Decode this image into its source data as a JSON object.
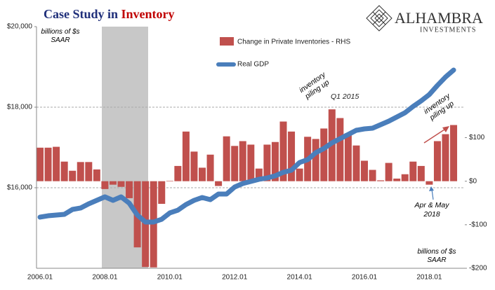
{
  "chart_data": {
    "type": "bar_line",
    "title": "Case Study in",
    "title_highlight": "Inventory",
    "logo": {
      "name": "ALHAMBRA",
      "sub": "INVESTMENTS"
    },
    "annotations": {
      "left_unit": "billions of $s SAAR",
      "right_unit": "billions of $s SAAR",
      "piling_1": "inventory piling up",
      "q1": "Q1 2015",
      "piling_2": "inventory piling up",
      "aprmay": "Apr & May 2018"
    },
    "categories": [
      "2006.01",
      null,
      null,
      null,
      null,
      null,
      null,
      null,
      "2008.01",
      null,
      null,
      null,
      null,
      null,
      null,
      null,
      "2010.01",
      null,
      null,
      null,
      null,
      null,
      null,
      null,
      "2012.01",
      null,
      null,
      null,
      null,
      null,
      null,
      null,
      "2014.01",
      null,
      null,
      null,
      null,
      null,
      null,
      null,
      "2016.01",
      null,
      null,
      null,
      null,
      null,
      null,
      null,
      "2018.01",
      null,
      null,
      null
    ],
    "series": [
      {
        "name": "Change in Private Inventories - RHS",
        "color": "#c0504d",
        "axis": "y2",
        "values": [
          77,
          77,
          79,
          45,
          24,
          44,
          44,
          27,
          -18,
          -8,
          -13,
          -39,
          -152,
          -197,
          -198,
          -52,
          1,
          35,
          114,
          68,
          31,
          61,
          -11,
          103,
          81,
          92,
          84,
          29,
          84,
          90,
          137,
          114,
          29,
          102,
          97,
          121,
          165,
          145,
          110,
          82,
          47,
          26,
          2,
          42,
          6,
          16,
          45,
          35,
          -8,
          92,
          108,
          129
        ]
      },
      {
        "name": "Real GDP",
        "color": "#4a7ebb",
        "values": [
          15270,
          15304,
          15322,
          15339,
          15461,
          15496,
          15600,
          15687,
          15774,
          15687,
          15774,
          15617,
          15322,
          15148,
          15148,
          15217,
          15374,
          15443,
          15583,
          15687,
          15757,
          15704,
          15843,
          15843,
          16017,
          16104,
          16157,
          16209,
          16243,
          16296,
          16383,
          16435,
          16626,
          16696,
          16870,
          16974,
          17113,
          17217,
          17322,
          17426,
          17461,
          17478,
          17565,
          17652,
          17757,
          17861,
          18017,
          18157,
          18313,
          18539,
          18748,
          18922
        ]
      }
    ],
    "ylim": [
      14000,
      20000
    ],
    "yticks": [
      {
        "value": 16000,
        "label": "$16,000"
      },
      {
        "value": 18000,
        "label": "$18,000"
      },
      {
        "value": 20000,
        "label": "$20,000"
      }
    ],
    "y2lim": [
      -200,
      355
    ],
    "y2ticks": [
      {
        "value": -200,
        "label": "-$200"
      },
      {
        "value": -100,
        "label": "-$100"
      },
      {
        "value": 0,
        "label": "$0"
      },
      {
        "value": 100,
        "label": "$100"
      }
    ],
    "grid": true
  }
}
